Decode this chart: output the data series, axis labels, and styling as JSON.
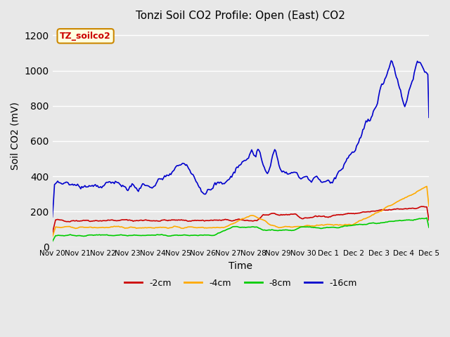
{
  "title": "Tonzi Soil CO2 Profile: Open (East) CO2",
  "ylabel": "Soil CO2 (mV)",
  "xlabel": "Time",
  "ylim": [
    0,
    1260
  ],
  "yticks": [
    0,
    200,
    400,
    600,
    800,
    1000,
    1200
  ],
  "background_color": "#e8e8e8",
  "plot_bg_color": "#e8e8e8",
  "legend_label": "TZ_soilco2",
  "series": [
    {
      "label": "-2cm",
      "color": "#cc0000"
    },
    {
      "label": "-4cm",
      "color": "#ffaa00"
    },
    {
      "label": "-8cm",
      "color": "#00cc00"
    },
    {
      "label": "-16cm",
      "color": "#0000cc"
    }
  ],
  "xtick_labels": [
    "Nov 20",
    "Nov 21",
    "Nov 22",
    "Nov 23",
    "Nov 24",
    "Nov 25",
    "Nov 26",
    "Nov 27",
    "Nov 28",
    "Nov 29",
    "Nov 30",
    "Dec 1",
    "Dec 2",
    "Dec 3",
    "Dec 4",
    "Dec 5"
  ],
  "n_points": 360
}
